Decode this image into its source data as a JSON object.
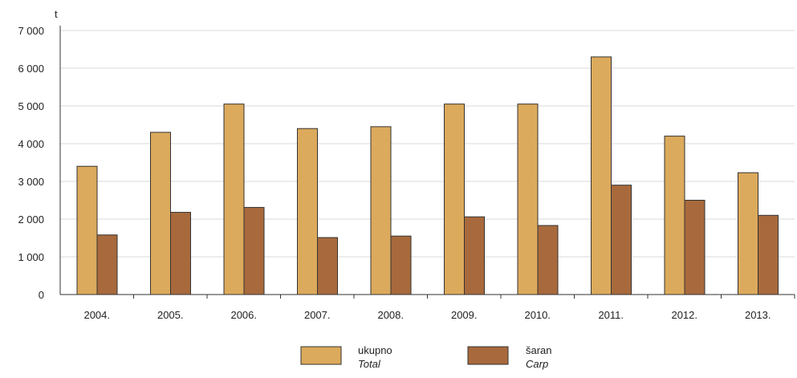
{
  "chart_data": {
    "type": "bar",
    "unit_label": "t",
    "categories": [
      "2004.",
      "2005.",
      "2006.",
      "2007.",
      "2008.",
      "2009.",
      "2010.",
      "2011.",
      "2012.",
      "2013."
    ],
    "series": [
      {
        "name": "ukupno",
        "name_alt": "Total",
        "color": "#dcaa5c",
        "values": [
          3400,
          4300,
          5050,
          4400,
          4450,
          5050,
          5050,
          6300,
          4200,
          3230
        ]
      },
      {
        "name": "šaran",
        "name_alt": "Carp",
        "color": "#a86a3c",
        "values": [
          1580,
          2180,
          2310,
          1510,
          1550,
          2060,
          1830,
          2900,
          2500,
          2100
        ]
      }
    ],
    "ylim": [
      0,
      7000
    ],
    "yticks": [
      0,
      1000,
      2000,
      3000,
      4000,
      5000,
      6000,
      7000
    ],
    "ytick_labels": [
      "0",
      "1 000",
      "2 000",
      "3 000",
      "4 000",
      "5 000",
      "6 000",
      "7 000"
    ],
    "grid": true,
    "legend_position": "bottom-center"
  }
}
